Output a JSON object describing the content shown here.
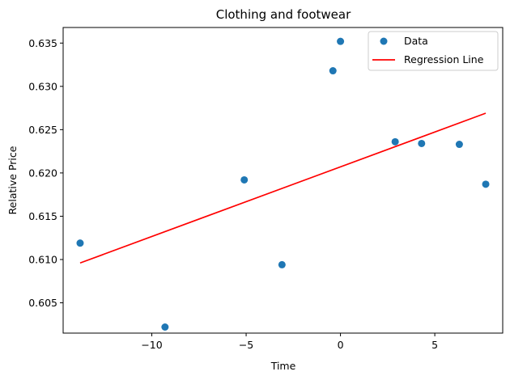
{
  "chart_data": {
    "type": "scatter",
    "title": "Clothing and footwear",
    "xlabel": "Time",
    "ylabel": "Relative Price",
    "xlim": [
      -14.7,
      8.6
    ],
    "ylim": [
      0.6015,
      0.6368
    ],
    "xticks": [
      -10,
      -5,
      0,
      5
    ],
    "xtick_labels": [
      "−10",
      "−5",
      "0",
      "5"
    ],
    "yticks": [
      0.605,
      0.61,
      0.615,
      0.62,
      0.625,
      0.63,
      0.635
    ],
    "ytick_labels": [
      "0.605",
      "0.610",
      "0.615",
      "0.620",
      "0.625",
      "0.630",
      "0.635"
    ],
    "grid": false,
    "legend_position": "top-right",
    "series": [
      {
        "name": "Data",
        "kind": "scatter",
        "color": "#1f77b4",
        "x": [
          -13.8,
          -9.3,
          -5.1,
          -3.1,
          -0.4,
          0.0,
          2.9,
          4.3,
          6.3,
          7.7
        ],
        "y": [
          0.6119,
          0.6022,
          0.6192,
          0.6094,
          0.6318,
          0.6352,
          0.6236,
          0.6234,
          0.6233,
          0.6187
        ]
      },
      {
        "name": "Regression Line",
        "kind": "line",
        "color": "#ff0000",
        "x": [
          -13.8,
          7.7
        ],
        "y": [
          0.6096,
          0.6269
        ]
      }
    ]
  }
}
